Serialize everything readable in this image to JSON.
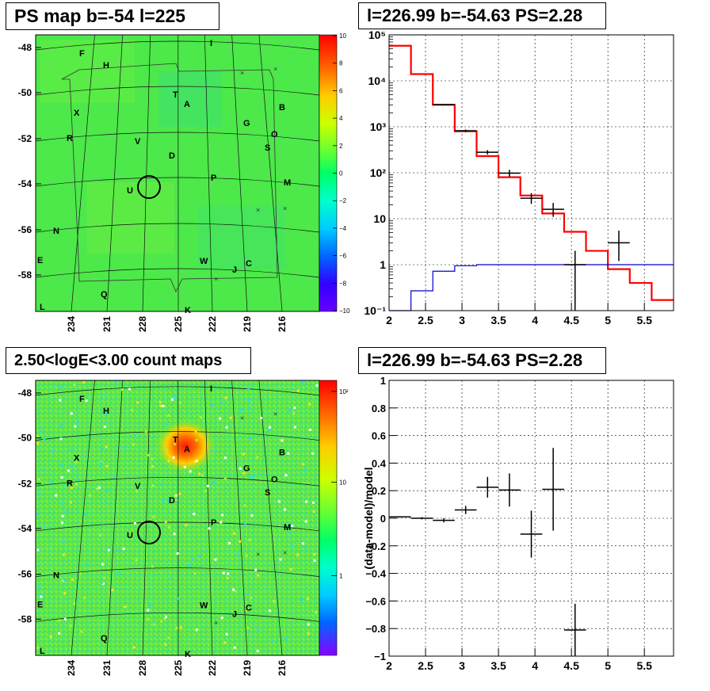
{
  "panels": {
    "ps_map": {
      "title": "PS map b=-54 l=225",
      "y_ticks": [
        "-48",
        "-50",
        "-52",
        "-54",
        "-56",
        "-58"
      ],
      "x_ticks": [
        "234",
        "231",
        "228",
        "225",
        "222",
        "219",
        "216"
      ],
      "colorbar_ticks": [
        "10",
        "8",
        "6",
        "4",
        "2",
        "0",
        "−2",
        "−4",
        "−6",
        "−8",
        "−10"
      ]
    },
    "count_map": {
      "title": "2.50<logE<3.00 count maps",
      "y_ticks": [
        "-48",
        "-50",
        "-52",
        "-54",
        "-56",
        "-58"
      ],
      "x_ticks": [
        "234",
        "231",
        "228",
        "225",
        "222",
        "219",
        "216"
      ],
      "colorbar_ticks": [
        "10²",
        "10",
        "1"
      ]
    },
    "spectrum": {
      "title": "l=226.99 b=-54.63 PS=2.28"
    },
    "residual": {
      "title": "l=226.99 b=-54.63 PS=2.28"
    }
  },
  "source_labels": [
    {
      "t": "I",
      "col": "225"
    },
    {
      "t": "F",
      "col": "234"
    },
    {
      "t": "H",
      "col": "232"
    },
    {
      "t": "T",
      "col": "226"
    },
    {
      "t": "A",
      "col": "225"
    },
    {
      "t": "X",
      "col": "234"
    },
    {
      "t": "B",
      "col": "217"
    },
    {
      "t": "G",
      "col": "220"
    },
    {
      "t": "O",
      "col": "218"
    },
    {
      "t": "R",
      "col": "235"
    },
    {
      "t": "V",
      "col": "230"
    },
    {
      "t": "S",
      "col": "218"
    },
    {
      "t": "D",
      "col": "227"
    },
    {
      "t": "P",
      "col": "222"
    },
    {
      "t": "M",
      "col": "216"
    },
    {
      "t": "U",
      "col": "229"
    },
    {
      "t": "N",
      "col": "236"
    },
    {
      "t": "W",
      "col": "223"
    },
    {
      "t": "J",
      "col": "221"
    },
    {
      "t": "C",
      "col": "219"
    },
    {
      "t": "E",
      "col": "237"
    },
    {
      "t": "Q",
      "col": "232"
    },
    {
      "t": "L",
      "col": "237"
    },
    {
      "t": "K",
      "col": "224"
    }
  ],
  "chart_data": [
    {
      "type": "step",
      "title": "l=226.99 b=-54.63 PS=2.28",
      "xlim": [
        2,
        5.9
      ],
      "ylim": [
        0.1,
        100000
      ],
      "yscale": "log",
      "x_ticks": [
        "2",
        "2.5",
        "3",
        "3.5",
        "4",
        "4.5",
        "5",
        "5.5"
      ],
      "y_ticks": [
        "10⁻¹",
        "1",
        "10",
        "10²",
        "10³",
        "10⁴",
        "10⁵"
      ],
      "grid": true,
      "series": [
        {
          "role": "model",
          "color": "#ff0000",
          "edges": [
            2.0,
            2.3,
            2.6,
            2.9,
            3.2,
            3.5,
            3.8,
            4.1,
            4.4,
            4.7,
            5.0,
            5.3,
            5.6,
            5.9
          ],
          "values": [
            58000,
            14000,
            3000,
            800,
            230,
            80,
            32,
            13,
            5.2,
            2.0,
            0.8,
            0.4,
            0.17
          ]
        },
        {
          "role": "background",
          "color": "#0000cc",
          "edges": [
            2.0,
            2.3,
            2.6,
            2.9,
            3.2,
            3.5,
            3.8,
            4.1,
            4.4,
            4.7,
            5.0,
            5.3,
            5.6,
            5.9
          ],
          "values": [
            0.05,
            0.27,
            0.72,
            0.95,
            1.0,
            1.0,
            1.0,
            1.0,
            1.0,
            1.0,
            1.0,
            1.0,
            1.0
          ]
        },
        {
          "role": "data",
          "color": "#000000",
          "points": [
            {
              "x": 2.75,
              "xerr": 0.15,
              "y": 3050,
              "ylo": 2950,
              "yhi": 3150
            },
            {
              "x": 3.05,
              "xerr": 0.15,
              "y": 820,
              "ylo": 770,
              "yhi": 870
            },
            {
              "x": 3.35,
              "xerr": 0.15,
              "y": 280,
              "ylo": 250,
              "yhi": 310
            },
            {
              "x": 3.65,
              "xerr": 0.15,
              "y": 98,
              "ylo": 82,
              "yhi": 116
            },
            {
              "x": 3.95,
              "xerr": 0.15,
              "y": 28,
              "ylo": 21,
              "yhi": 36
            },
            {
              "x": 4.25,
              "xerr": 0.15,
              "y": 16,
              "ylo": 11,
              "yhi": 22
            },
            {
              "x": 4.55,
              "xerr": 0.15,
              "y": 1.0,
              "ylo": 0.1,
              "yhi": 2.0
            },
            {
              "x": 5.15,
              "xerr": 0.15,
              "y": 3.0,
              "ylo": 1.2,
              "yhi": 5.5
            }
          ]
        }
      ]
    },
    {
      "type": "scatter",
      "title": "l=226.99 b=-54.63 PS=2.28",
      "ylabel": "(data-model)/model",
      "xlim": [
        2,
        5.9
      ],
      "ylim": [
        -1,
        1
      ],
      "x_ticks": [
        "2",
        "2.5",
        "3",
        "3.5",
        "4",
        "4.5",
        "5",
        "5.5"
      ],
      "y_ticks": [
        "−1",
        "−0.8",
        "−0.6",
        "−0.4",
        "−0.2",
        "0",
        "0.2",
        "0.4",
        "0.6",
        "0.8",
        "1"
      ],
      "grid": true,
      "series": [
        {
          "role": "residual",
          "color": "#000000",
          "points": [
            {
              "x": 2.15,
              "xerr": 0.15,
              "y": 0.01,
              "yerr": 0.005
            },
            {
              "x": 2.45,
              "xerr": 0.15,
              "y": 0.0,
              "yerr": 0.008
            },
            {
              "x": 2.75,
              "xerr": 0.15,
              "y": -0.015,
              "yerr": 0.015
            },
            {
              "x": 3.05,
              "xerr": 0.15,
              "y": 0.06,
              "yerr": 0.03
            },
            {
              "x": 3.35,
              "xerr": 0.15,
              "y": 0.225,
              "yerr": 0.075
            },
            {
              "x": 3.65,
              "xerr": 0.15,
              "y": 0.205,
              "yerr": 0.12
            },
            {
              "x": 3.95,
              "xerr": 0.15,
              "y": -0.115,
              "yerr": 0.17
            },
            {
              "x": 4.25,
              "xerr": 0.15,
              "y": 0.21,
              "yerr": 0.3
            },
            {
              "x": 4.55,
              "xerr": 0.15,
              "y": -0.81,
              "yerr": 0.19
            }
          ]
        }
      ]
    }
  ]
}
